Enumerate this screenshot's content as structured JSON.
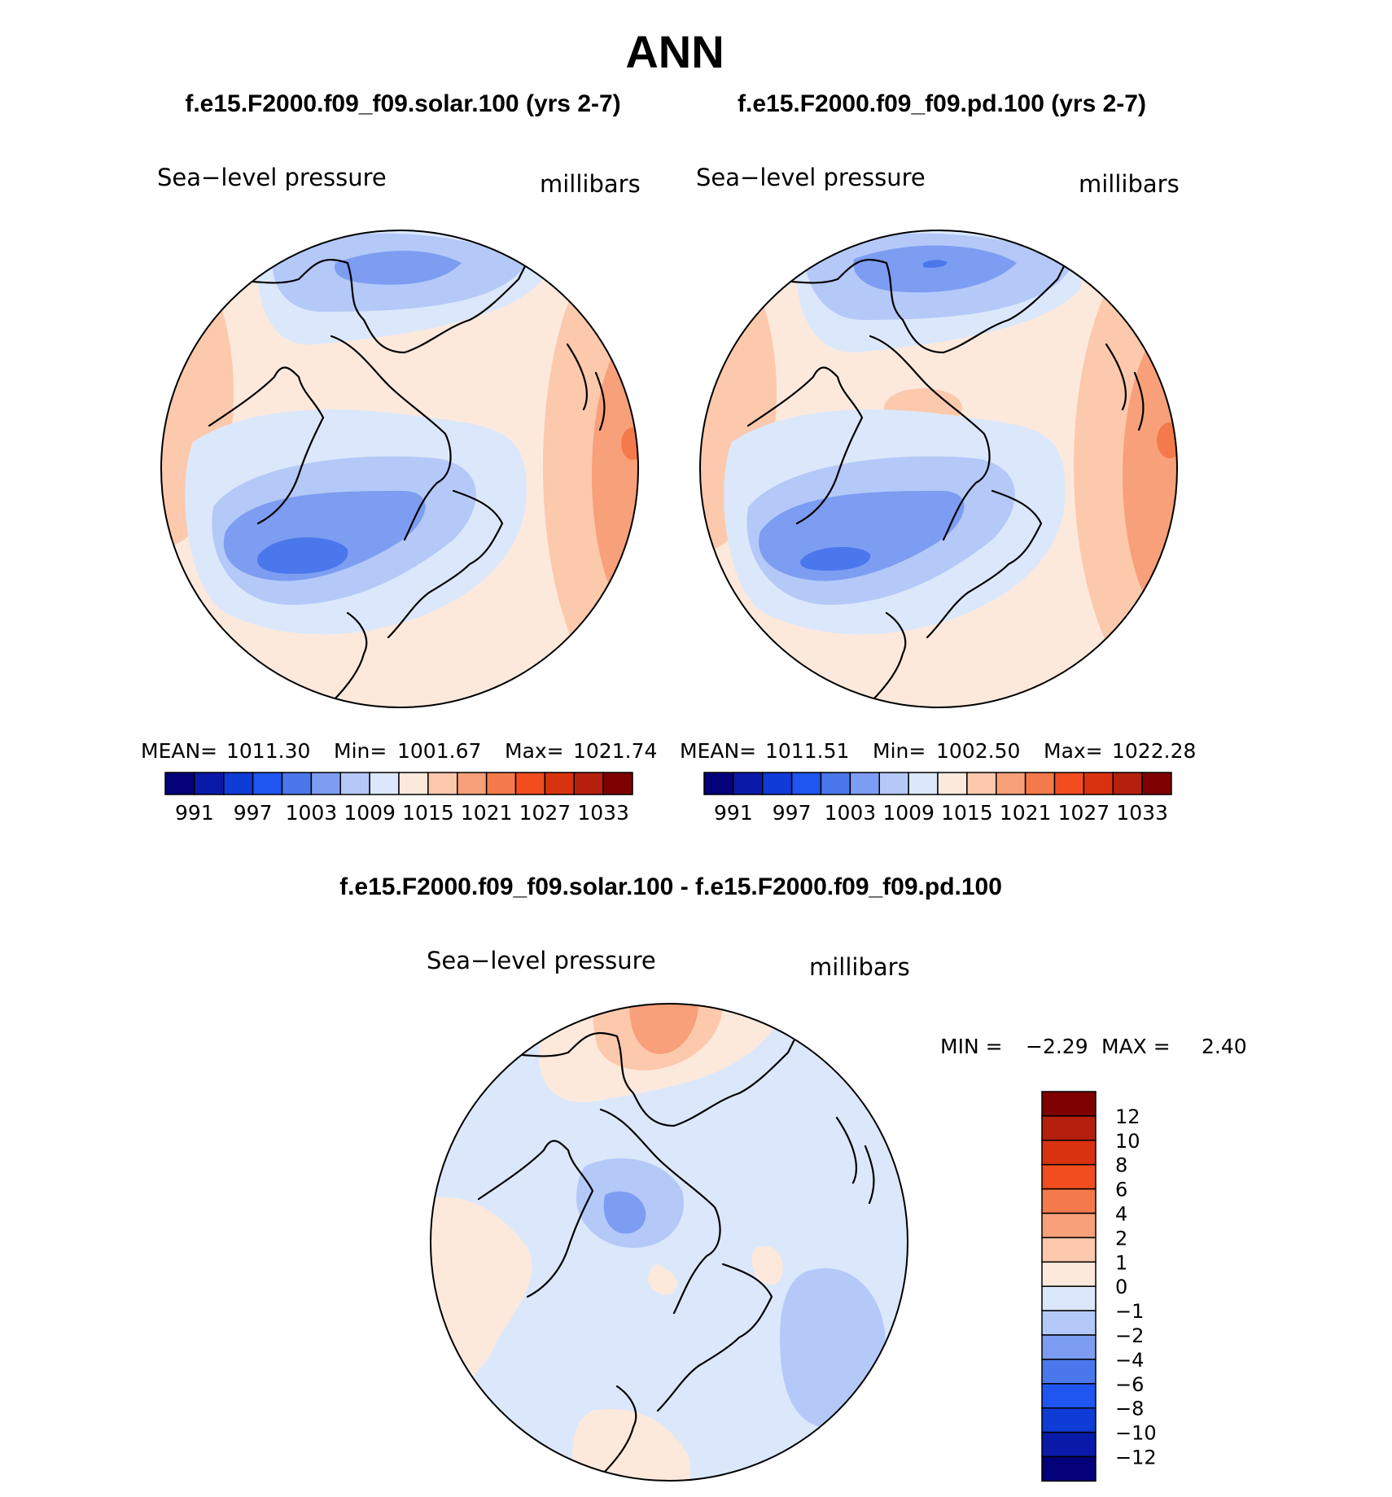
{
  "title": "ANN",
  "colors": {
    "c991": "#03007a",
    "c994": "#0a1aa8",
    "c997": "#0f3bd6",
    "c1000": "#1f55f0",
    "c1003": "#4a77ec",
    "c1006": "#7d9df2",
    "c1009": "#b4c9f8",
    "c1012": "#dbe8fb",
    "c1015": "#fde9dc",
    "c1018": "#fcc9ad",
    "c1021": "#f8a07a",
    "c1024": "#f57a4b",
    "c1027": "#f24d1f",
    "c1030": "#d93210",
    "c1033": "#b5200c",
    "c1036": "#7f0000"
  },
  "panels": [
    {
      "heading": "f.e15.F2000.f09_f09.solar.100 (yrs 2-7)",
      "variable": "Sea−level pressure",
      "units": "millibars",
      "stats": {
        "mean_label": "MEAN=",
        "mean": "1011.30",
        "min_label": "Min=",
        "min": "1001.67",
        "max_label": "Max=",
        "max": "1021.74"
      }
    },
    {
      "heading": "f.e15.F2000.f09_f09.pd.100 (yrs 2-7)",
      "variable": "Sea−level pressure",
      "units": "millibars",
      "stats": {
        "mean_label": "MEAN=",
        "mean": "1011.51",
        "min_label": "Min=",
        "min": "1002.50",
        "max_label": "Max=",
        "max": "1022.28"
      }
    }
  ],
  "colorbar": {
    "colors": [
      "#03007a",
      "#0a1aa8",
      "#0f3bd6",
      "#1f55f0",
      "#4a77ec",
      "#7d9df2",
      "#b4c9f8",
      "#dbe8fb",
      "#fde9dc",
      "#fcc9ad",
      "#f8a07a",
      "#f57a4b",
      "#f24d1f",
      "#d93210",
      "#b5200c",
      "#7f0000"
    ],
    "labels": [
      "991",
      "997",
      "1003",
      "1009",
      "1015",
      "1021",
      "1027",
      "1033"
    ]
  },
  "diff": {
    "heading": "f.e15.F2000.f09_f09.solar.100 - f.e15.F2000.f09_f09.pd.100",
    "variable": "Sea−level pressure",
    "units": "millibars",
    "stats": {
      "min_label": "MIN =",
      "min": "−2.29",
      "max_label": "MAX =",
      "max": "2.40"
    },
    "colorbar": {
      "colors": [
        "#7f0000",
        "#b5200c",
        "#d93210",
        "#f24d1f",
        "#f57a4b",
        "#f8a07a",
        "#fcc9ad",
        "#fde9dc",
        "#dbe8fb",
        "#b4c9f8",
        "#7d9df2",
        "#4a77ec",
        "#1f55f0",
        "#0f3bd6",
        "#0a1aa8",
        "#03007a"
      ],
      "labels": [
        "12",
        "10",
        "8",
        "6",
        "4",
        "2",
        "1",
        "0",
        "−1",
        "−2",
        "−4",
        "−6",
        "−8",
        "−10",
        "−12"
      ]
    },
    "colors": {
      "neg1": "#dbe8fb",
      "neg2": "#b4c9f8",
      "neg4": "#7d9df2",
      "pos1": "#fde9dc",
      "pos2": "#fcc9ad",
      "pos4": "#f8a07a"
    }
  }
}
